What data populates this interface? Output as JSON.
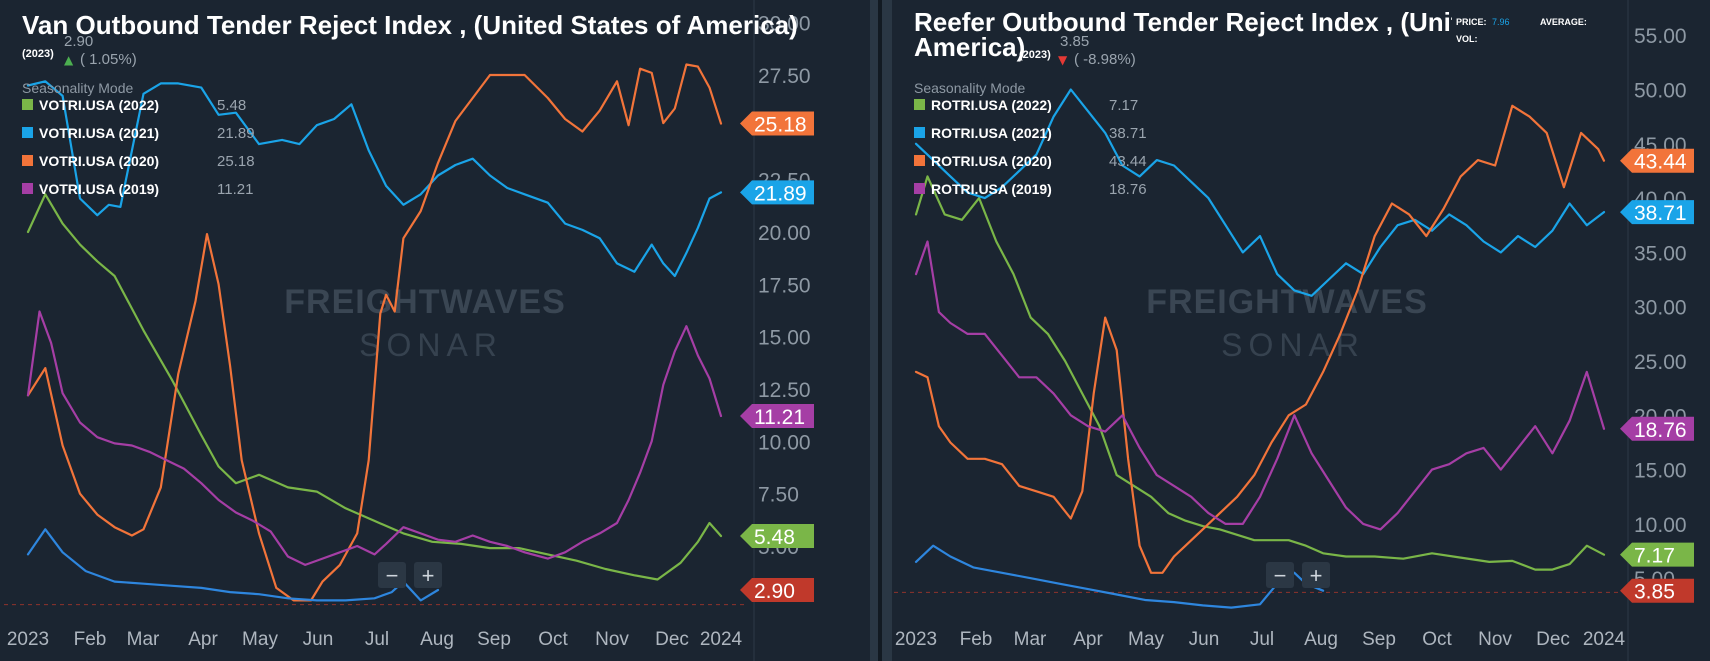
{
  "chart_data": [
    {
      "type": "line",
      "title": "Van Outbound Tender Reject Index , (United States of America)",
      "current_year": "(2023)",
      "current_value": "2.90",
      "current_change": "( 1.05%)",
      "change_direction": "up",
      "mode_label": "Seasonality Mode",
      "watermark": [
        "FREIGHTWAVES",
        "SONAR"
      ],
      "x_ticks": [
        "2023",
        "Feb",
        "Mar",
        "Apr",
        "May",
        "Jun",
        "Jul",
        "Aug",
        "Sep",
        "Oct",
        "Nov",
        "Dec",
        "2024"
      ],
      "y_ticks": [
        "30.00",
        "27.50",
        "25.00",
        "22.50",
        "20.00",
        "17.50",
        "15.00",
        "12.50",
        "10.00",
        "7.50",
        "5.00"
      ],
      "ylim": [
        1.8,
        30.7
      ],
      "zoom_buttons": [
        "−",
        "+"
      ],
      "series": [
        {
          "name": "VOTRI.USA (2022)",
          "last": "5.48",
          "color": "#7ab648",
          "x": [
            0,
            0.3,
            0.6,
            0.9,
            1.2,
            1.5,
            2,
            2.5,
            3,
            3.3,
            3.6,
            4,
            4.5,
            5,
            5.5,
            6,
            6.5,
            7,
            7.5,
            8,
            8.5,
            9,
            9.5,
            10,
            10.5,
            10.9,
            11.3,
            11.6,
            11.8,
            12
          ],
          "y": [
            20.0,
            21.8,
            20.4,
            19.4,
            18.6,
            17.9,
            15.3,
            12.9,
            10.3,
            8.8,
            8.0,
            8.4,
            7.8,
            7.6,
            6.8,
            6.2,
            5.6,
            5.2,
            5.1,
            4.9,
            4.9,
            4.6,
            4.3,
            3.9,
            3.6,
            3.4,
            4.2,
            5.2,
            6.1,
            5.48
          ]
        },
        {
          "name": "VOTRI.USA (2021)",
          "last": "21.89",
          "color": "#1aa4e8",
          "x": [
            0,
            0.3,
            0.6,
            0.9,
            1.2,
            1.4,
            1.6,
            2,
            2.3,
            2.6,
            3,
            3.3,
            3.6,
            4,
            4.4,
            4.7,
            5,
            5.3,
            5.6,
            5.9,
            6.2,
            6.5,
            6.8,
            7.1,
            7.4,
            7.7,
            8,
            8.3,
            8.6,
            9,
            9.3,
            9.6,
            9.9,
            10.2,
            10.5,
            10.8,
            11,
            11.2,
            11.4,
            11.6,
            11.8,
            12
          ],
          "y": [
            27.0,
            27.2,
            26.5,
            21.6,
            20.8,
            21.3,
            21.2,
            26.6,
            27.1,
            27.1,
            26.9,
            25.6,
            25.7,
            24.2,
            24.4,
            24.2,
            25.1,
            25.4,
            26.1,
            23.9,
            22.2,
            21.3,
            21.8,
            22.7,
            23.2,
            23.5,
            22.7,
            22.1,
            21.8,
            21.4,
            20.4,
            20.1,
            19.7,
            18.5,
            18.1,
            19.4,
            18.5,
            17.9,
            19.0,
            20.2,
            21.6,
            21.89
          ]
        },
        {
          "name": "VOTRI.USA (2020)",
          "last": "25.18",
          "color": "#f2743a",
          "x": [
            0,
            0.3,
            0.6,
            0.9,
            1.2,
            1.5,
            1.8,
            2,
            2.3,
            2.6,
            2.9,
            3.1,
            3.3,
            3.5,
            3.7,
            4,
            4.3,
            4.6,
            4.9,
            5.1,
            5.4,
            5.7,
            5.9,
            6.1,
            6.2,
            6.35,
            6.5,
            6.8,
            7.1,
            7.4,
            7.7,
            8,
            8.3,
            8.6,
            9,
            9.3,
            9.6,
            9.9,
            10.2,
            10.4,
            10.6,
            10.8,
            11,
            11.2,
            11.4,
            11.6,
            11.8,
            12
          ],
          "y": [
            12.2,
            13.5,
            9.8,
            7.5,
            6.5,
            5.9,
            5.5,
            5.8,
            7.8,
            13.2,
            16.7,
            19.9,
            17.5,
            13.6,
            9.1,
            5.6,
            3.0,
            2.4,
            2.4,
            3.3,
            4.1,
            5.6,
            9.1,
            16.1,
            17.0,
            16.2,
            19.7,
            21.0,
            23.3,
            25.3,
            26.4,
            27.5,
            27.5,
            27.5,
            26.4,
            25.4,
            24.8,
            25.8,
            27.2,
            25.1,
            27.8,
            27.6,
            25.2,
            25.9,
            28.0,
            27.9,
            26.9,
            25.18
          ]
        },
        {
          "name": "VOTRI.USA (2019)",
          "last": "11.21",
          "color": "#a53ea5",
          "x": [
            0,
            0.2,
            0.4,
            0.6,
            0.9,
            1.2,
            1.5,
            1.8,
            2.1,
            2.4,
            2.7,
            3,
            3.3,
            3.6,
            3.9,
            4.2,
            4.5,
            4.8,
            5.1,
            5.4,
            5.7,
            6,
            6.2,
            6.5,
            6.8,
            7.1,
            7.4,
            7.7,
            8,
            8.3,
            8.6,
            9,
            9.3,
            9.6,
            9.9,
            10.2,
            10.4,
            10.6,
            10.8,
            11,
            11.2,
            11.4,
            11.6,
            11.8,
            12
          ],
          "y": [
            12.2,
            16.2,
            14.7,
            12.3,
            10.9,
            10.2,
            9.9,
            9.8,
            9.5,
            9.1,
            8.7,
            8.0,
            7.2,
            6.6,
            6.2,
            5.7,
            4.5,
            4.1,
            4.4,
            4.7,
            5.0,
            4.6,
            5.1,
            5.9,
            5.6,
            5.3,
            5.2,
            5.5,
            5.2,
            5.0,
            4.7,
            4.4,
            4.7,
            5.2,
            5.6,
            6.1,
            7.2,
            8.5,
            10.0,
            12.7,
            14.3,
            15.5,
            14.1,
            13.0,
            11.21
          ]
        },
        {
          "name": "2023",
          "color": "#2e86de",
          "hidden_legend": true,
          "x": [
            0,
            0.3,
            0.6,
            1,
            1.5,
            2,
            2.5,
            3,
            3.5,
            4,
            4.5,
            5,
            5.5,
            6,
            6.3,
            6.5,
            6.8,
            7.1
          ],
          "y": [
            4.6,
            5.8,
            4.7,
            3.8,
            3.3,
            3.2,
            3.1,
            3.0,
            2.8,
            2.7,
            2.5,
            2.4,
            2.4,
            2.5,
            2.8,
            3.3,
            2.4,
            2.9
          ]
        }
      ],
      "reference_line": 2.2,
      "badges": [
        {
          "value": "25.18",
          "color": "#f2743a"
        },
        {
          "value": "21.89",
          "color": "#1aa4e8"
        },
        {
          "value": "11.21",
          "color": "#a53ea5"
        },
        {
          "value": "5.48",
          "color": "#7ab648"
        },
        {
          "value": "2.90",
          "color": "#c0392b"
        }
      ]
    },
    {
      "type": "line",
      "title_line1": "Reefer Outbound Tender Reject Index , (United",
      "title_line2": "America)",
      "current_year": "(2023)",
      "current_value": "3.85",
      "current_change": "( -8.98%)",
      "change_direction": "down",
      "mode_label": "Seasonality Mode",
      "tooltip": {
        "price_label": "PRICE:",
        "price_value": "7.96",
        "average_label": "AVERAGE:",
        "vol_label": "VOL:"
      },
      "watermark": [
        "FREIGHTWAVES",
        "SONAR"
      ],
      "x_ticks": [
        "2023",
        "Feb",
        "Mar",
        "Apr",
        "May",
        "Jun",
        "Jul",
        "Aug",
        "Sep",
        "Oct",
        "Nov",
        "Dec",
        "2024"
      ],
      "y_ticks": [
        "55.00",
        "50.00",
        "45.00",
        "40.00",
        "35.00",
        "30.00",
        "25.00",
        "20.00",
        "15.00",
        "10.00",
        "5.00"
      ],
      "ylim": [
        1.8,
        57.5
      ],
      "zoom_buttons": [
        "−",
        "+"
      ],
      "series": [
        {
          "name": "ROTRI.USA (2022)",
          "last": "7.17",
          "color": "#7ab648",
          "x": [
            0,
            0.2,
            0.5,
            0.8,
            1.1,
            1.4,
            1.7,
            2,
            2.3,
            2.6,
            2.9,
            3.2,
            3.5,
            3.8,
            4.1,
            4.4,
            4.7,
            5,
            5.3,
            5.6,
            5.9,
            6.2,
            6.5,
            6.8,
            7.1,
            7.5,
            8,
            8.5,
            9,
            9.5,
            10,
            10.4,
            10.8,
            11.1,
            11.4,
            11.7,
            12
          ],
          "y": [
            38.5,
            42.0,
            38.5,
            38.0,
            40.0,
            36.0,
            33.0,
            29.0,
            27.5,
            25.0,
            22.0,
            19.0,
            14.5,
            13.5,
            12.5,
            11.0,
            10.3,
            9.8,
            9.5,
            9.0,
            8.5,
            8.5,
            8.5,
            8.0,
            7.3,
            7.0,
            7.0,
            6.8,
            7.3,
            6.9,
            6.5,
            6.6,
            5.8,
            5.8,
            6.3,
            8.0,
            7.17
          ]
        },
        {
          "name": "ROTRI.USA (2021)",
          "last": "38.71",
          "color": "#1aa4e8",
          "x": [
            0,
            0.3,
            0.6,
            0.9,
            1.2,
            1.5,
            1.8,
            2.1,
            2.4,
            2.7,
            3,
            3.3,
            3.6,
            3.9,
            4.2,
            4.5,
            4.8,
            5.1,
            5.4,
            5.7,
            6,
            6.3,
            6.6,
            6.9,
            7.2,
            7.5,
            7.8,
            8.1,
            8.4,
            8.7,
            9,
            9.3,
            9.6,
            9.9,
            10.2,
            10.5,
            10.8,
            11.1,
            11.4,
            11.7,
            12
          ],
          "y": [
            45.0,
            43.5,
            42.0,
            40.5,
            40.0,
            41.0,
            42.5,
            44.0,
            47.5,
            50.0,
            48.0,
            46.0,
            43.0,
            42.0,
            43.5,
            43.0,
            41.5,
            40.0,
            37.5,
            35.0,
            36.5,
            33.0,
            31.5,
            31.0,
            32.5,
            34.0,
            33.0,
            35.5,
            37.5,
            38.0,
            37.0,
            38.5,
            37.5,
            36.0,
            35.0,
            36.5,
            35.5,
            37.0,
            39.5,
            37.5,
            38.71
          ]
        },
        {
          "name": "ROTRI.USA (2020)",
          "last": "43.44",
          "color": "#f2743a",
          "x": [
            0,
            0.2,
            0.4,
            0.6,
            0.9,
            1.2,
            1.5,
            1.8,
            2.1,
            2.4,
            2.7,
            2.9,
            3.1,
            3.3,
            3.5,
            3.7,
            3.9,
            4.1,
            4.3,
            4.5,
            4.7,
            5,
            5.3,
            5.6,
            5.9,
            6.2,
            6.5,
            6.8,
            7.1,
            7.4,
            7.7,
            8,
            8.3,
            8.6,
            8.9,
            9.2,
            9.5,
            9.8,
            10.1,
            10.4,
            10.7,
            11,
            11.3,
            11.6,
            11.9,
            12
          ],
          "y": [
            24.0,
            23.5,
            19.0,
            17.5,
            16.0,
            16.0,
            15.5,
            13.5,
            13.0,
            12.5,
            10.5,
            13.0,
            22.0,
            29.0,
            26.0,
            16.0,
            8.0,
            5.5,
            5.5,
            7.0,
            8.0,
            9.5,
            11.0,
            12.5,
            14.5,
            17.5,
            20.0,
            21.0,
            24.0,
            27.5,
            31.5,
            36.5,
            39.5,
            38.5,
            36.5,
            39.0,
            42.0,
            43.5,
            43.0,
            48.5,
            47.5,
            46.0,
            41.0,
            46.0,
            44.5,
            43.44
          ]
        },
        {
          "name": "ROTRI.USA (2019)",
          "last": "18.76",
          "color": "#a53ea5",
          "x": [
            0,
            0.2,
            0.4,
            0.6,
            0.9,
            1.2,
            1.5,
            1.8,
            2.1,
            2.4,
            2.7,
            3,
            3.3,
            3.6,
            3.9,
            4.2,
            4.5,
            4.8,
            5.1,
            5.4,
            5.7,
            6,
            6.3,
            6.6,
            6.9,
            7.2,
            7.5,
            7.8,
            8.1,
            8.4,
            8.7,
            9,
            9.3,
            9.6,
            9.9,
            10.2,
            10.5,
            10.8,
            11.1,
            11.4,
            11.7,
            12
          ],
          "y": [
            33.0,
            36.0,
            29.5,
            28.5,
            27.5,
            27.5,
            25.5,
            23.5,
            23.5,
            22.0,
            20.0,
            19.0,
            18.5,
            20.0,
            17.0,
            14.5,
            13.5,
            12.5,
            11.0,
            10.0,
            10.0,
            12.5,
            16.0,
            20.0,
            16.5,
            14.0,
            11.5,
            10.0,
            9.5,
            11.0,
            13.0,
            15.0,
            15.5,
            16.5,
            17.0,
            15.0,
            17.0,
            19.0,
            16.5,
            19.5,
            24.0,
            18.76
          ]
        },
        {
          "name": "2023",
          "color": "#2e86de",
          "hidden_legend": true,
          "x": [
            0,
            0.3,
            0.6,
            1,
            1.5,
            2,
            2.5,
            3,
            3.5,
            4,
            4.5,
            5,
            5.5,
            6,
            6.3,
            6.6,
            6.8,
            7.1
          ],
          "y": [
            6.5,
            8.0,
            7.0,
            6.0,
            5.5,
            5.0,
            4.5,
            4.0,
            3.5,
            3.0,
            2.8,
            2.5,
            2.3,
            2.6,
            4.5,
            5.5,
            4.5,
            3.85
          ]
        }
      ],
      "reference_line": 3.7,
      "badges": [
        {
          "value": "43.44",
          "color": "#f2743a"
        },
        {
          "value": "38.71",
          "color": "#1aa4e8"
        },
        {
          "value": "18.76",
          "color": "#a53ea5"
        },
        {
          "value": "7.17",
          "color": "#7ab648"
        },
        {
          "value": "3.85",
          "color": "#c0392b"
        }
      ]
    }
  ]
}
